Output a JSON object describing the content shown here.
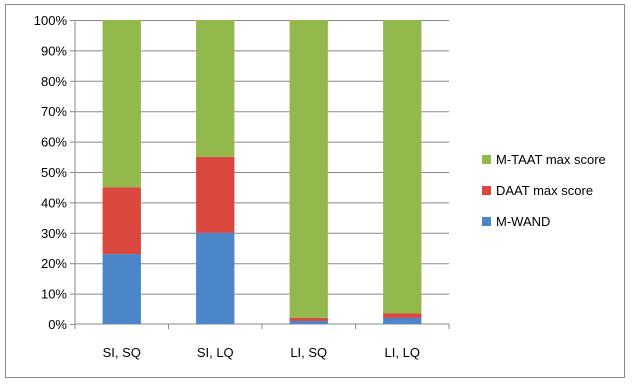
{
  "chart_data": {
    "type": "bar",
    "stacking": "percent",
    "title": "",
    "xlabel": "",
    "ylabel": "",
    "categories": [
      "SI, SQ",
      "SI, LQ",
      "LI, SQ",
      "LI, LQ"
    ],
    "ylim": [
      0,
      100
    ],
    "yticks": [
      "0%",
      "10%",
      "20%",
      "30%",
      "40%",
      "50%",
      "60%",
      "70%",
      "80%",
      "90%",
      "100%"
    ],
    "grid": "horizontal",
    "legend_position": "right",
    "series": [
      {
        "name": "M-WAND",
        "values": [
          23,
          30,
          1,
          2
        ],
        "color": "#4a86c8"
      },
      {
        "name": "DAAT max score",
        "values": [
          22,
          25,
          1,
          1.5
        ],
        "color": "#d9473f"
      },
      {
        "name": "M-TAAT max score",
        "values": [
          55,
          45,
          98,
          96.5
        ],
        "color": "#93b84c"
      }
    ]
  }
}
